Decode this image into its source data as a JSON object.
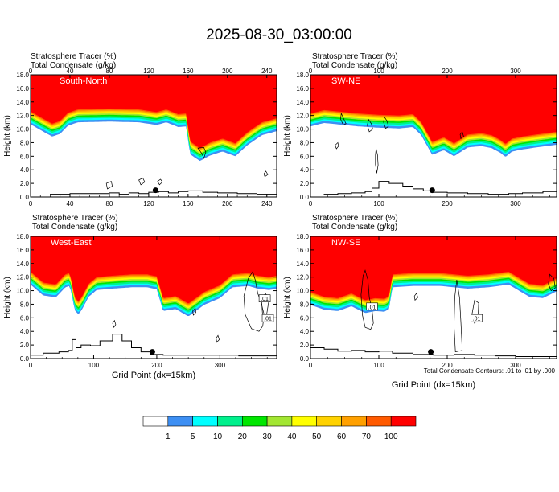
{
  "title": "2025-08-30_03:00:00",
  "footer_note": "Total Condensate Contours: .01 to .01 by .000",
  "colorbar": {
    "colors": [
      "#ffffff",
      "#3d8ff3",
      "#00ffff",
      "#00f08c",
      "#00e600",
      "#a2e632",
      "#ffff00",
      "#ffd200",
      "#ffa000",
      "#ff5a00",
      "#ff0000"
    ],
    "labels": [
      "1",
      "5",
      "10",
      "20",
      "30",
      "40",
      "50",
      "60",
      "70",
      "100"
    ]
  },
  "chart_data": [
    {
      "type": "heatmap",
      "panel_id": "south-north",
      "label": "South-North",
      "left_titles": [
        "Stratosphere Tracer   (%)",
        "Total Condensate   (g/kg)"
      ],
      "ylabel": "Height (km)",
      "xlabel": "",
      "xlim": [
        0,
        250
      ],
      "xticks": [
        "0",
        "40",
        "80",
        "120",
        "160",
        "200",
        "240"
      ],
      "ylim": [
        0,
        18
      ],
      "yticks": [
        "0.0",
        "2.0",
        "4.0",
        "6.0",
        "8.0",
        "10.0",
        "12.0",
        "14.0",
        "16.0",
        "18.0"
      ],
      "tracer_base_km": [
        [
          0,
          12.6
        ],
        [
          12,
          11.6
        ],
        [
          22,
          10.8
        ],
        [
          30,
          11.2
        ],
        [
          38,
          12.4
        ],
        [
          48,
          12.9
        ],
        [
          80,
          13.0
        ],
        [
          110,
          12.9
        ],
        [
          128,
          12.5
        ],
        [
          138,
          12.9
        ],
        [
          150,
          12.2
        ],
        [
          158,
          12.3
        ],
        [
          162,
          8.2
        ],
        [
          172,
          7.2
        ],
        [
          182,
          8.0
        ],
        [
          195,
          8.6
        ],
        [
          208,
          7.9
        ],
        [
          220,
          9.5
        ],
        [
          235,
          11.0
        ],
        [
          250,
          11.6
        ]
      ],
      "cloud_contours_km": [
        [
          [
            170,
            7.2
          ],
          [
            174,
            6.4
          ],
          [
            176,
            5.7
          ],
          [
            178,
            6.6
          ],
          [
            176,
            7.3
          ]
        ],
        [
          [
            78,
            1.2
          ],
          [
            83,
            1.6
          ],
          [
            82,
            2.3
          ],
          [
            77,
            2.0
          ]
        ],
        [
          [
            112,
            1.8
          ],
          [
            116,
            2.2
          ],
          [
            114,
            2.8
          ],
          [
            110,
            2.5
          ]
        ],
        [
          [
            238,
            3.0
          ],
          [
            241,
            3.3
          ],
          [
            239,
            3.8
          ],
          [
            237,
            3.4
          ]
        ],
        [
          [
            131,
            1.8
          ],
          [
            134,
            2.2
          ],
          [
            132,
            2.6
          ],
          [
            129,
            2.3
          ]
        ]
      ],
      "terrain_km": [
        [
          0,
          0.3
        ],
        [
          20,
          0.4
        ],
        [
          40,
          0.5
        ],
        [
          60,
          0.5
        ],
        [
          80,
          0.6
        ],
        [
          90,
          0.4
        ],
        [
          100,
          0.6
        ],
        [
          110,
          0.5
        ],
        [
          120,
          0.7
        ],
        [
          130,
          0.8
        ],
        [
          140,
          0.6
        ],
        [
          150,
          0.8
        ],
        [
          160,
          0.9
        ],
        [
          175,
          0.7
        ],
        [
          190,
          0.6
        ],
        [
          210,
          0.5
        ],
        [
          230,
          0.4
        ],
        [
          250,
          0.3
        ]
      ],
      "marker": [
        127,
        1.0
      ]
    },
    {
      "type": "heatmap",
      "panel_id": "sw-ne",
      "label": "SW-NE",
      "left_titles": [
        "Stratosphere Tracer   (%)",
        "Total Condensate   (g/kg)"
      ],
      "ylabel": "Height (km)",
      "xlabel": "",
      "xlim": [
        0,
        360
      ],
      "xticks": [
        "0",
        "100",
        "200",
        "300"
      ],
      "ylim": [
        0,
        18
      ],
      "yticks": [
        "0.0",
        "2.0",
        "4.0",
        "6.0",
        "8.0",
        "10.0",
        "12.0",
        "14.0",
        "16.0",
        "18.0"
      ],
      "tracer_base_km": [
        [
          0,
          12.3
        ],
        [
          20,
          12.8
        ],
        [
          40,
          12.6
        ],
        [
          70,
          12.3
        ],
        [
          100,
          12.1
        ],
        [
          130,
          12.0
        ],
        [
          150,
          12.2
        ],
        [
          162,
          11.0
        ],
        [
          178,
          8.1
        ],
        [
          195,
          8.8
        ],
        [
          210,
          7.9
        ],
        [
          230,
          9.2
        ],
        [
          250,
          9.4
        ],
        [
          265,
          9.1
        ],
        [
          278,
          8.4
        ],
        [
          285,
          7.8
        ],
        [
          295,
          8.6
        ],
        [
          310,
          8.9
        ],
        [
          330,
          9.2
        ],
        [
          360,
          9.6
        ]
      ],
      "cloud_contours_km": [
        [
          [
            96,
            7.1
          ],
          [
            98,
            6.2
          ],
          [
            99,
            4.7
          ],
          [
            97,
            3.5
          ],
          [
            95,
            4.8
          ],
          [
            95,
            6.2
          ]
        ],
        [
          [
            45,
            12.3
          ],
          [
            50,
            11.2
          ],
          [
            52,
            10.8
          ],
          [
            48,
            10.6
          ],
          [
            44,
            11.5
          ]
        ],
        [
          [
            108,
            11.8
          ],
          [
            112,
            11.2
          ],
          [
            114,
            10.4
          ],
          [
            110,
            10.1
          ],
          [
            107,
            11.0
          ]
        ],
        [
          [
            85,
            11.4
          ],
          [
            89,
            10.8
          ],
          [
            91,
            10.0
          ],
          [
            86,
            9.6
          ],
          [
            83,
            10.6
          ]
        ],
        [
          [
            38,
            7.1
          ],
          [
            41,
            7.5
          ],
          [
            40,
            8.0
          ],
          [
            36,
            7.6
          ]
        ],
        [
          [
            220,
            8.6
          ],
          [
            224,
            8.9
          ],
          [
            222,
            9.6
          ],
          [
            219,
            9.2
          ]
        ]
      ],
      "terrain_km": [
        [
          0,
          0.3
        ],
        [
          20,
          0.4
        ],
        [
          40,
          0.5
        ],
        [
          60,
          0.6
        ],
        [
          80,
          0.8
        ],
        [
          90,
          1.3
        ],
        [
          100,
          2.3
        ],
        [
          115,
          2.0
        ],
        [
          135,
          1.6
        ],
        [
          150,
          1.2
        ],
        [
          165,
          0.9
        ],
        [
          180,
          0.7
        ],
        [
          200,
          0.6
        ],
        [
          230,
          0.5
        ],
        [
          260,
          0.4
        ],
        [
          290,
          0.5
        ],
        [
          310,
          0.6
        ],
        [
          340,
          0.8
        ],
        [
          360,
          0.6
        ]
      ],
      "marker": [
        178,
        1.0
      ]
    },
    {
      "type": "heatmap",
      "panel_id": "west-east",
      "label": "West-East",
      "left_titles": [
        "Stratosphere Tracer   (%)",
        "Total Condensate   (g/kg)"
      ],
      "ylabel": "Height (km)",
      "xlabel": "Grid Point (dx=15km)",
      "xlim": [
        0,
        390
      ],
      "xticks": [
        "0",
        "100",
        "200",
        "300"
      ],
      "ylim": [
        0,
        18
      ],
      "yticks": [
        "0.0",
        "2.0",
        "4.0",
        "6.0",
        "8.0",
        "10.0",
        "12.0",
        "14.0",
        "16.0",
        "18.0"
      ],
      "tracer_base_km": [
        [
          0,
          12.8
        ],
        [
          20,
          11.2
        ],
        [
          40,
          10.9
        ],
        [
          55,
          12.4
        ],
        [
          62,
          12.6
        ],
        [
          66,
          11.0
        ],
        [
          70,
          9.0
        ],
        [
          76,
          8.4
        ],
        [
          82,
          9.2
        ],
        [
          92,
          11.0
        ],
        [
          105,
          12.0
        ],
        [
          130,
          12.2
        ],
        [
          160,
          12.4
        ],
        [
          185,
          12.4
        ],
        [
          200,
          12.1
        ],
        [
          210,
          8.9
        ],
        [
          230,
          9.2
        ],
        [
          250,
          8.1
        ],
        [
          275,
          9.8
        ],
        [
          300,
          10.8
        ],
        [
          320,
          12.4
        ],
        [
          345,
          12.6
        ],
        [
          360,
          12.2
        ],
        [
          378,
          12.0
        ],
        [
          390,
          12.2
        ]
      ],
      "cloud_contours_km": [
        [
          [
            352,
            12.8
          ],
          [
            356,
            11.6
          ],
          [
            360,
            9.6
          ],
          [
            366,
            8.0
          ],
          [
            370,
            6.5
          ],
          [
            368,
            4.8
          ],
          [
            362,
            4.0
          ],
          [
            350,
            4.4
          ],
          [
            340,
            6.5
          ],
          [
            338,
            9.2
          ],
          [
            345,
            11.8
          ]
        ],
        [
          [
            366,
            8.6
          ],
          [
            372,
            9.6
          ],
          [
            378,
            8.8
          ],
          [
            374,
            6.4
          ],
          [
            368,
            6.0
          ]
        ],
        [
          [
            258,
            6.4
          ],
          [
            262,
            6.8
          ],
          [
            261,
            7.4
          ],
          [
            257,
            7.0
          ]
        ],
        [
          [
            295,
            2.4
          ],
          [
            299,
            2.8
          ],
          [
            297,
            3.4
          ],
          [
            294,
            3.0
          ]
        ],
        [
          [
            132,
            4.6
          ],
          [
            135,
            5.0
          ],
          [
            133,
            5.6
          ],
          [
            130,
            5.2
          ]
        ]
      ],
      "inline_labels": [
        {
          "text": ".01",
          "x": 371,
          "y": 8.8
        },
        {
          "text": ".01",
          "x": 376,
          "y": 5.9
        }
      ],
      "terrain_km": [
        [
          0,
          0.5
        ],
        [
          20,
          0.8
        ],
        [
          45,
          1.0
        ],
        [
          60,
          1.2
        ],
        [
          66,
          2.8
        ],
        [
          72,
          1.6
        ],
        [
          80,
          2.0
        ],
        [
          95,
          1.9
        ],
        [
          110,
          2.6
        ],
        [
          130,
          3.6
        ],
        [
          145,
          2.6
        ],
        [
          160,
          1.6
        ],
        [
          175,
          1.0
        ],
        [
          190,
          0.6
        ],
        [
          210,
          0.5
        ],
        [
          240,
          0.5
        ],
        [
          270,
          0.5
        ],
        [
          300,
          0.5
        ],
        [
          330,
          0.4
        ],
        [
          360,
          0.4
        ],
        [
          390,
          0.5
        ]
      ],
      "marker": [
        193,
        1.0
      ]
    },
    {
      "type": "heatmap",
      "panel_id": "nw-se",
      "label": "NW-SE",
      "left_titles": [
        "Stratosphere Tracer   (%)",
        "Total Condensate   (g/kg)"
      ],
      "ylabel": "Height (km)",
      "xlabel": "Grid Point (dx=15km)",
      "xlim": [
        0,
        360
      ],
      "xticks": [
        "0",
        "100",
        "200",
        "300"
      ],
      "ylim": [
        0,
        18
      ],
      "yticks": [
        "0.0",
        "2.0",
        "4.0",
        "6.0",
        "8.0",
        "10.0",
        "12.0",
        "14.0",
        "16.0",
        "18.0"
      ],
      "tracer_base_km": [
        [
          0,
          9.8
        ],
        [
          20,
          9.1
        ],
        [
          40,
          8.9
        ],
        [
          60,
          9.6
        ],
        [
          80,
          8.6
        ],
        [
          95,
          8.9
        ],
        [
          108,
          8.8
        ],
        [
          115,
          9.2
        ],
        [
          120,
          12.4
        ],
        [
          150,
          12.6
        ],
        [
          190,
          12.6
        ],
        [
          230,
          12.2
        ],
        [
          260,
          12.4
        ],
        [
          290,
          12.8
        ],
        [
          320,
          11.0
        ],
        [
          340,
          10.8
        ],
        [
          360,
          11.8
        ]
      ],
      "cloud_contours_km": [
        [
          [
            80,
            13.0
          ],
          [
            84,
            11.6
          ],
          [
            86,
            9.0
          ],
          [
            90,
            7.2
          ],
          [
            92,
            5.2
          ],
          [
            88,
            4.3
          ],
          [
            80,
            4.6
          ],
          [
            76,
            6.4
          ],
          [
            74,
            9.4
          ],
          [
            77,
            12.2
          ]
        ],
        [
          [
            214,
            11.6
          ],
          [
            218,
            9.0
          ],
          [
            220,
            5.4
          ],
          [
            222,
            1.2
          ],
          [
            212,
            1.0
          ],
          [
            210,
            4.8
          ],
          [
            211,
            9.0
          ]
        ],
        [
          [
            240,
            8.6
          ],
          [
            246,
            8.2
          ],
          [
            245,
            5.8
          ],
          [
            240,
            5.2
          ],
          [
            236,
            6.4
          ]
        ],
        [
          [
            153,
            8.6
          ],
          [
            157,
            9.0
          ],
          [
            155,
            9.6
          ],
          [
            152,
            9.2
          ]
        ],
        [
          [
            350,
            12.4
          ],
          [
            356,
            11.8
          ],
          [
            358,
            10.4
          ],
          [
            352,
            10.0
          ],
          [
            348,
            11.0
          ]
        ]
      ],
      "inline_labels": [
        {
          "text": ".01",
          "x": 90,
          "y": 7.6
        },
        {
          "text": ".01",
          "x": 243,
          "y": 5.9
        }
      ],
      "terrain_km": [
        [
          0,
          1.6
        ],
        [
          20,
          1.4
        ],
        [
          40,
          1.1
        ],
        [
          60,
          1.2
        ],
        [
          80,
          1.0
        ],
        [
          100,
          1.1
        ],
        [
          120,
          0.8
        ],
        [
          150,
          0.6
        ],
        [
          180,
          0.5
        ],
        [
          210,
          0.6
        ],
        [
          240,
          0.5
        ],
        [
          270,
          0.4
        ],
        [
          300,
          0.3
        ],
        [
          330,
          0.3
        ],
        [
          360,
          0.3
        ]
      ],
      "marker": [
        176,
        1.0
      ]
    }
  ]
}
